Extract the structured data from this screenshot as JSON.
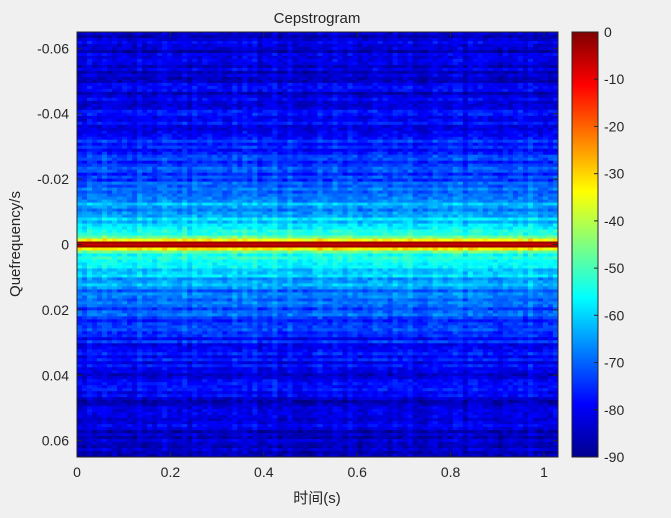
{
  "chart_data": {
    "type": "heatmap",
    "title": "Cepstrogram",
    "xlabel": "时间(s)",
    "ylabel": "Quefrequency/s",
    "xlim": [
      0,
      1.03
    ],
    "ylim": [
      -0.065,
      0.065
    ],
    "y_direction": "reverse",
    "x_ticks": [
      0,
      0.2,
      0.4,
      0.6,
      0.8,
      1
    ],
    "x_tick_labels": [
      "0",
      "0.2",
      "0.4",
      "0.6",
      "0.8",
      "1"
    ],
    "y_ticks": [
      -0.06,
      -0.04,
      -0.02,
      0,
      0.02,
      0.04,
      0.06
    ],
    "y_tick_labels": [
      "-0.06",
      "-0.04",
      "-0.02",
      "0",
      "0.02",
      "0.04",
      "0.06"
    ],
    "colormap": "jet",
    "clim": [
      -90,
      0
    ],
    "colorbar_ticks": [
      0,
      -10,
      -20,
      -30,
      -40,
      -50,
      -60,
      -70,
      -80,
      -90
    ],
    "colorbar_tick_labels": [
      "0",
      "-10",
      "-20",
      "-30",
      "-40",
      "-50",
      "-60",
      "-70",
      "-80",
      "-90"
    ],
    "colorbar_location": "right",
    "grid": false,
    "description_profile": {
      "quefrency": [
        -0.065,
        -0.05,
        -0.04,
        -0.03,
        -0.02,
        -0.01,
        -0.005,
        -0.002,
        0,
        0.002,
        0.005,
        0.01,
        0.02,
        0.03,
        0.04,
        0.05,
        0.065
      ],
      "level_db": [
        -84,
        -82,
        -80,
        -77,
        -72,
        -63,
        -55,
        -48,
        0,
        -48,
        -55,
        -63,
        -72,
        -77,
        -80,
        -82,
        -84
      ]
    }
  }
}
